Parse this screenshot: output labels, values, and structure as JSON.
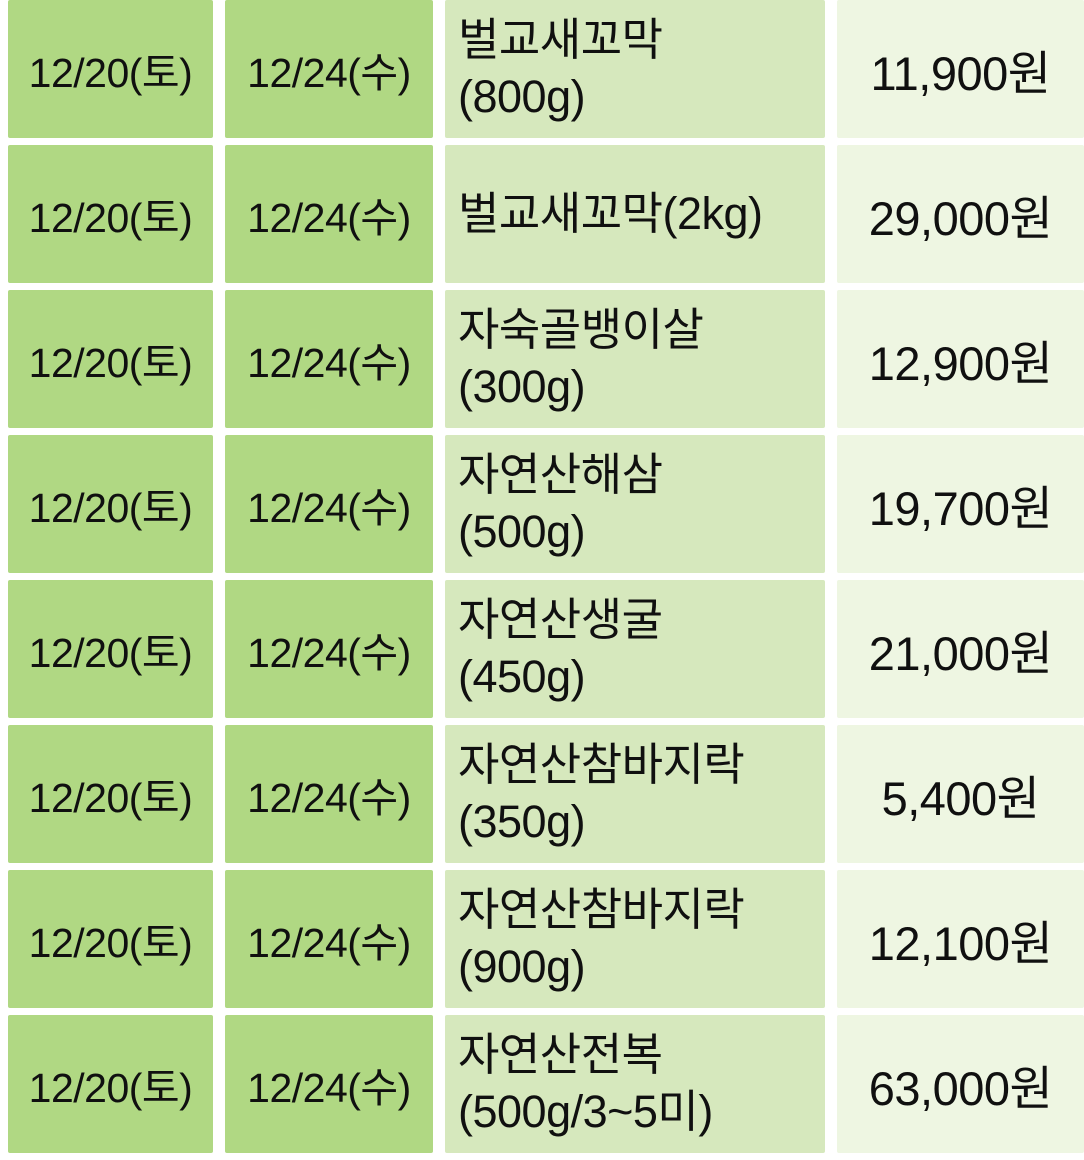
{
  "colors": {
    "date_cell_bg": "#b0d883",
    "product_cell_bg": "#d6e8bd",
    "price_cell_bg": "#eef6e2",
    "gutter_bg": "#ffffff",
    "text": "#101010"
  },
  "chart_data": {
    "type": "table",
    "columns": [
      "date_1",
      "date_2",
      "product",
      "price"
    ],
    "rows": [
      [
        "12/20(토)",
        "12/24(수)",
        "벌교새꼬막\n(800g)",
        "11,900원"
      ],
      [
        "12/20(토)",
        "12/24(수)",
        "벌교새꼬막(2kg)",
        "29,000원"
      ],
      [
        "12/20(토)",
        "12/24(수)",
        "자숙골뱅이살\n(300g)",
        "12,900원"
      ],
      [
        "12/20(토)",
        "12/24(수)",
        "자연산해삼\n(500g)",
        "19,700원"
      ],
      [
        "12/20(토)",
        "12/24(수)",
        "자연산생굴\n(450g)",
        "21,000원"
      ],
      [
        "12/20(토)",
        "12/24(수)",
        "자연산참바지락\n(350g)",
        "5,400원"
      ],
      [
        "12/20(토)",
        "12/24(수)",
        "자연산참바지락\n(900g)",
        "12,100원"
      ],
      [
        "12/20(토)",
        "12/24(수)",
        "자연산전복\n(500g/3~5미)",
        "63,000원"
      ]
    ]
  }
}
